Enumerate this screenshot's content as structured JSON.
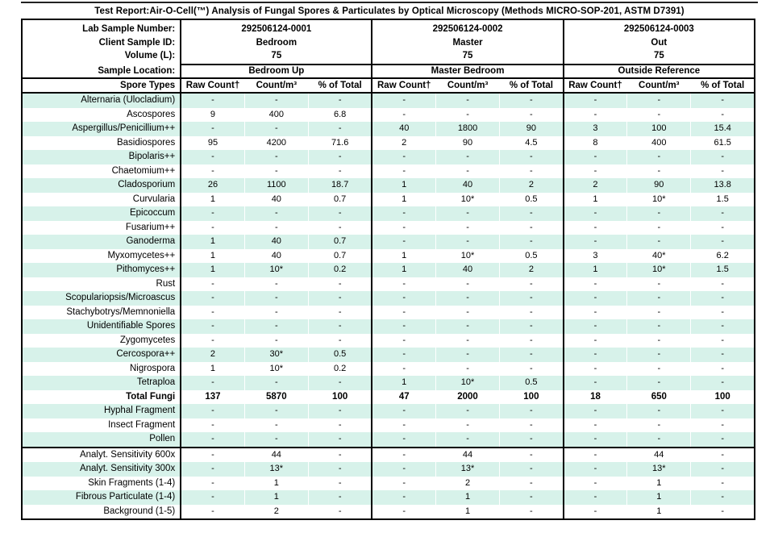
{
  "title": "Test Report:Air-O-Cell(™) Analysis of Fungal Spores & Particulates by Optical Microscopy (Methods MICRO-SOP-201, ASTM D7391)",
  "colors": {
    "stripe": "#d7f2ea",
    "border": "#000000"
  },
  "header": {
    "row_labels": [
      "Lab Sample Number:",
      "Client Sample ID:",
      "Volume (L):",
      "Sample Location:"
    ],
    "spore_types_label": "Spore Types",
    "sub_headers": [
      "Raw Count†",
      "Count/m³",
      "% of Total"
    ],
    "samples": [
      {
        "lab_number": "292506124-0001",
        "client_id": "Bedroom",
        "volume": "75",
        "location": "Bedroom Up"
      },
      {
        "lab_number": "292506124-0002",
        "client_id": "Master",
        "volume": "75",
        "location": "Master Bedroom"
      },
      {
        "lab_number": "292506124-0003",
        "client_id": "Out",
        "volume": "75",
        "location": "Outside Reference"
      }
    ]
  },
  "rows": [
    {
      "label": "Alternaria (Ulocladium)",
      "bold": false,
      "values": [
        "-",
        "-",
        "-",
        "-",
        "-",
        "-",
        "-",
        "-",
        "-"
      ]
    },
    {
      "label": "Ascospores",
      "bold": false,
      "values": [
        "9",
        "400",
        "6.8",
        "-",
        "-",
        "-",
        "-",
        "-",
        "-"
      ]
    },
    {
      "label": "Aspergillus/Penicillium++",
      "bold": false,
      "values": [
        "-",
        "-",
        "-",
        "40",
        "1800",
        "90",
        "3",
        "100",
        "15.4"
      ]
    },
    {
      "label": "Basidiospores",
      "bold": false,
      "values": [
        "95",
        "4200",
        "71.6",
        "2",
        "90",
        "4.5",
        "8",
        "400",
        "61.5"
      ]
    },
    {
      "label": "Bipolaris++",
      "bold": false,
      "values": [
        "-",
        "-",
        "-",
        "-",
        "-",
        "-",
        "-",
        "-",
        "-"
      ]
    },
    {
      "label": "Chaetomium++",
      "bold": false,
      "values": [
        "-",
        "-",
        "-",
        "-",
        "-",
        "-",
        "-",
        "-",
        "-"
      ]
    },
    {
      "label": "Cladosporium",
      "bold": false,
      "values": [
        "26",
        "1100",
        "18.7",
        "1",
        "40",
        "2",
        "2",
        "90",
        "13.8"
      ]
    },
    {
      "label": "Curvularia",
      "bold": false,
      "values": [
        "1",
        "40",
        "0.7",
        "1",
        "10*",
        "0.5",
        "1",
        "10*",
        "1.5"
      ]
    },
    {
      "label": "Epicoccum",
      "bold": false,
      "values": [
        "-",
        "-",
        "-",
        "-",
        "-",
        "-",
        "-",
        "-",
        "-"
      ]
    },
    {
      "label": "Fusarium++",
      "bold": false,
      "values": [
        "-",
        "-",
        "-",
        "-",
        "-",
        "-",
        "-",
        "-",
        "-"
      ]
    },
    {
      "label": "Ganoderma",
      "bold": false,
      "values": [
        "1",
        "40",
        "0.7",
        "-",
        "-",
        "-",
        "-",
        "-",
        "-"
      ]
    },
    {
      "label": "Myxomycetes++",
      "bold": false,
      "values": [
        "1",
        "40",
        "0.7",
        "1",
        "10*",
        "0.5",
        "3",
        "40*",
        "6.2"
      ]
    },
    {
      "label": "Pithomyces++",
      "bold": false,
      "values": [
        "1",
        "10*",
        "0.2",
        "1",
        "40",
        "2",
        "1",
        "10*",
        "1.5"
      ]
    },
    {
      "label": "Rust",
      "bold": false,
      "values": [
        "-",
        "-",
        "-",
        "-",
        "-",
        "-",
        "-",
        "-",
        "-"
      ]
    },
    {
      "label": "Scopulariopsis/Microascus",
      "bold": false,
      "values": [
        "-",
        "-",
        "-",
        "-",
        "-",
        "-",
        "-",
        "-",
        "-"
      ]
    },
    {
      "label": "Stachybotrys/Memnoniella",
      "bold": false,
      "values": [
        "-",
        "-",
        "-",
        "-",
        "-",
        "-",
        "-",
        "-",
        "-"
      ]
    },
    {
      "label": "Unidentifiable Spores",
      "bold": false,
      "values": [
        "-",
        "-",
        "-",
        "-",
        "-",
        "-",
        "-",
        "-",
        "-"
      ]
    },
    {
      "label": "Zygomycetes",
      "bold": false,
      "values": [
        "-",
        "-",
        "-",
        "-",
        "-",
        "-",
        "-",
        "-",
        "-"
      ]
    },
    {
      "label": "Cercospora++",
      "bold": false,
      "values": [
        "2",
        "30*",
        "0.5",
        "-",
        "-",
        "-",
        "-",
        "-",
        "-"
      ]
    },
    {
      "label": "Nigrospora",
      "bold": false,
      "values": [
        "1",
        "10*",
        "0.2",
        "-",
        "-",
        "-",
        "-",
        "-",
        "-"
      ]
    },
    {
      "label": "Tetraploa",
      "bold": false,
      "values": [
        "-",
        "-",
        "-",
        "1",
        "10*",
        "0.5",
        "-",
        "-",
        "-"
      ]
    },
    {
      "label": "Total Fungi",
      "bold": true,
      "values": [
        "137",
        "5870",
        "100",
        "47",
        "2000",
        "100",
        "18",
        "650",
        "100"
      ]
    },
    {
      "label": "Hyphal Fragment",
      "bold": false,
      "values": [
        "-",
        "-",
        "-",
        "-",
        "-",
        "-",
        "-",
        "-",
        "-"
      ]
    },
    {
      "label": "Insect Fragment",
      "bold": false,
      "values": [
        "-",
        "-",
        "-",
        "-",
        "-",
        "-",
        "-",
        "-",
        "-"
      ]
    },
    {
      "label": "Pollen",
      "bold": false,
      "values": [
        "-",
        "-",
        "-",
        "-",
        "-",
        "-",
        "-",
        "-",
        "-"
      ]
    }
  ],
  "footer_rows": [
    {
      "label": "Analyt. Sensitivity 600x",
      "bold": false,
      "values": [
        "-",
        "44",
        "-",
        "-",
        "44",
        "-",
        "-",
        "44",
        "-"
      ]
    },
    {
      "label": "Analyt. Sensitivity 300x",
      "bold": false,
      "values": [
        "-",
        "13*",
        "-",
        "-",
        "13*",
        "-",
        "-",
        "13*",
        "-"
      ]
    },
    {
      "label": "Skin Fragments (1-4)",
      "bold": false,
      "values": [
        "-",
        "1",
        "-",
        "-",
        "2",
        "-",
        "-",
        "1",
        "-"
      ]
    },
    {
      "label": "Fibrous Particulate (1-4)",
      "bold": false,
      "values": [
        "-",
        "1",
        "-",
        "-",
        "1",
        "-",
        "-",
        "1",
        "-"
      ]
    },
    {
      "label": "Background (1-5)",
      "bold": false,
      "values": [
        "-",
        "2",
        "-",
        "-",
        "1",
        "-",
        "-",
        "1",
        "-"
      ]
    }
  ]
}
